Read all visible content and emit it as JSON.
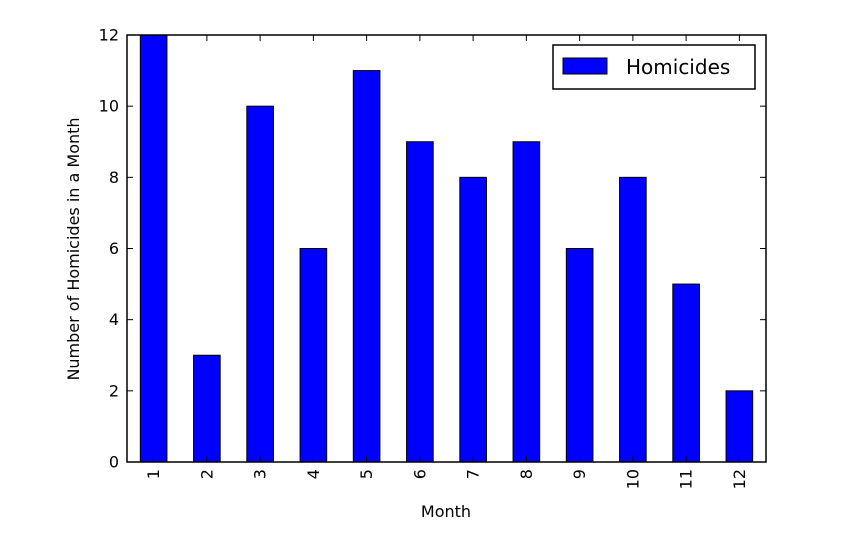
{
  "chart_data": {
    "type": "bar",
    "xlabel": "Month",
    "ylabel": "Number of Homicides in a Month",
    "categories": [
      "1",
      "2",
      "3",
      "4",
      "5",
      "6",
      "7",
      "8",
      "9",
      "10",
      "11",
      "12"
    ],
    "series": [
      {
        "name": "Homicides",
        "values": [
          12,
          3,
          10,
          6,
          11,
          9,
          8,
          9,
          6,
          8,
          5,
          2
        ]
      }
    ],
    "ylim": [
      0,
      12
    ],
    "yticks": [
      "0",
      "2",
      "4",
      "6",
      "8",
      "10",
      "12"
    ],
    "grid": false,
    "legend_position": "top-right",
    "bar_color": "#0000ff",
    "edge_color": "#000000"
  }
}
